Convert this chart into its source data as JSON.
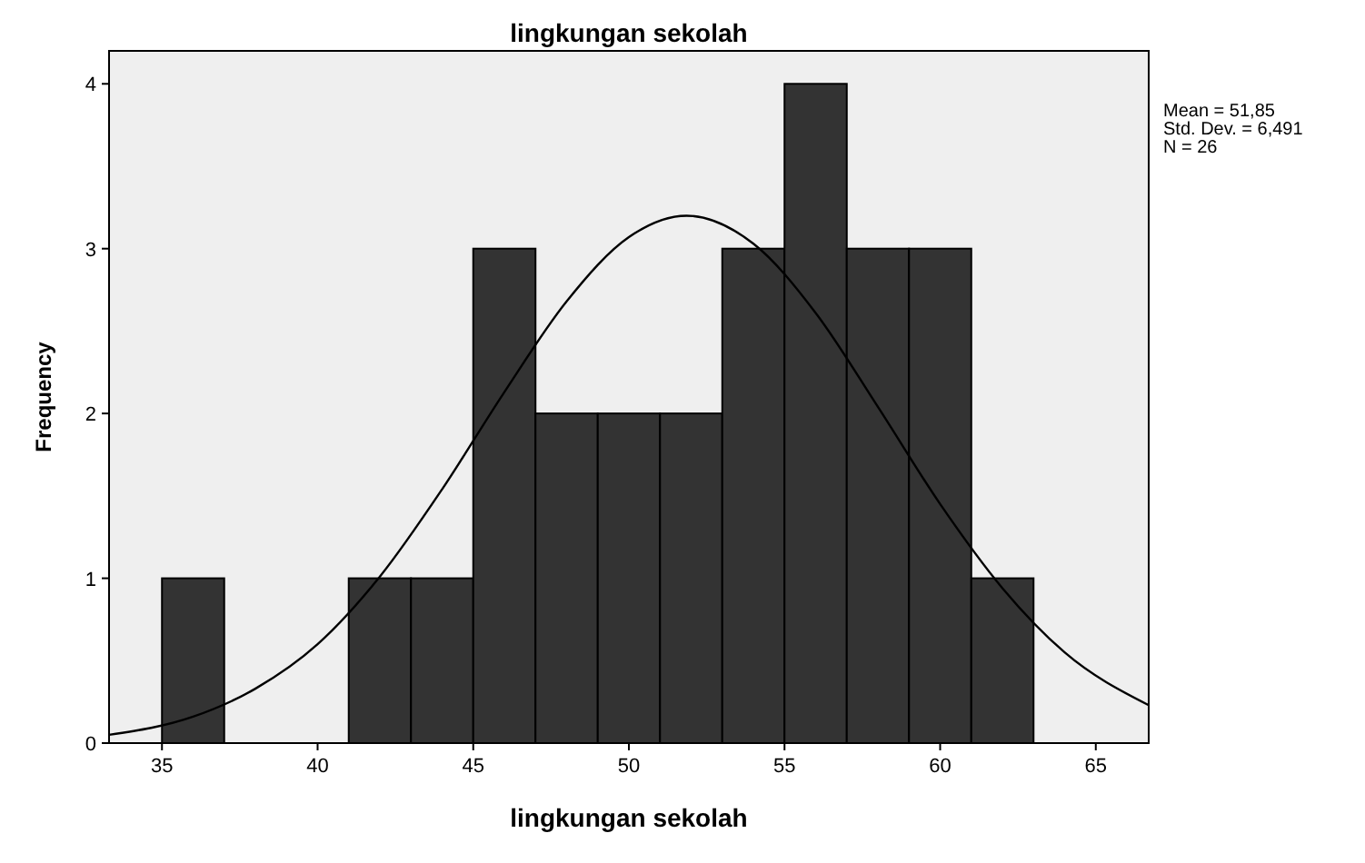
{
  "chart_data": {
    "type": "histogram",
    "title": "lingkungan sekolah",
    "xlabel": "lingkungan sekolah",
    "ylabel": "Frequency",
    "bins": [
      35,
      37,
      39,
      41,
      43,
      45,
      47,
      49,
      51,
      53,
      55,
      57,
      59,
      61,
      63
    ],
    "values": [
      1,
      0,
      0,
      1,
      1,
      3,
      2,
      2,
      2,
      3,
      4,
      3,
      3,
      1
    ],
    "color": "#333333",
    "series": [
      {
        "type": "line",
        "color": "#000000",
        "x": [
          33.3,
          36,
          38,
          40,
          42,
          44,
          46,
          48,
          50,
          51.85,
          54,
          56,
          58,
          60,
          62,
          64,
          66.7
        ],
        "values": [
          0.05,
          0.16,
          0.33,
          0.6,
          1.01,
          1.54,
          2.13,
          2.68,
          3.07,
          3.2,
          3.03,
          2.61,
          2.04,
          1.45,
          0.94,
          0.55,
          0.23
        ]
      }
    ],
    "xlim": [
      33.3,
      66.7
    ],
    "xticks": [
      35,
      40,
      45,
      50,
      55,
      60,
      65
    ],
    "ylim": [
      0,
      4.2
    ],
    "yticks": [
      0,
      1,
      2,
      3,
      4
    ],
    "grid": false,
    "annotations": [
      "Mean = 51,85",
      "Std. Dev. = 6,491",
      "N = 26"
    ]
  }
}
